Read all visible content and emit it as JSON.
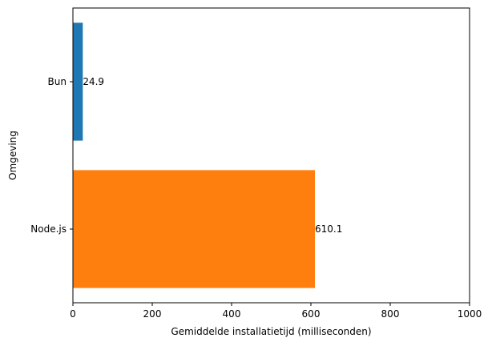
{
  "chart_data": {
    "type": "bar",
    "orientation": "horizontal",
    "categories": [
      "Bun",
      "Node.js"
    ],
    "values": [
      24.9,
      610.1
    ],
    "value_labels": [
      "24.9",
      "610.1"
    ],
    "colors": [
      "#1f77b4",
      "#ff7f0e"
    ],
    "xlabel": "Gemiddelde installatietijd (milliseconden)",
    "ylabel": "Omgeving",
    "xlim": [
      0,
      1000
    ],
    "xticks": [
      0,
      200,
      400,
      600,
      800,
      1000
    ],
    "grid": false,
    "legend": "none"
  }
}
